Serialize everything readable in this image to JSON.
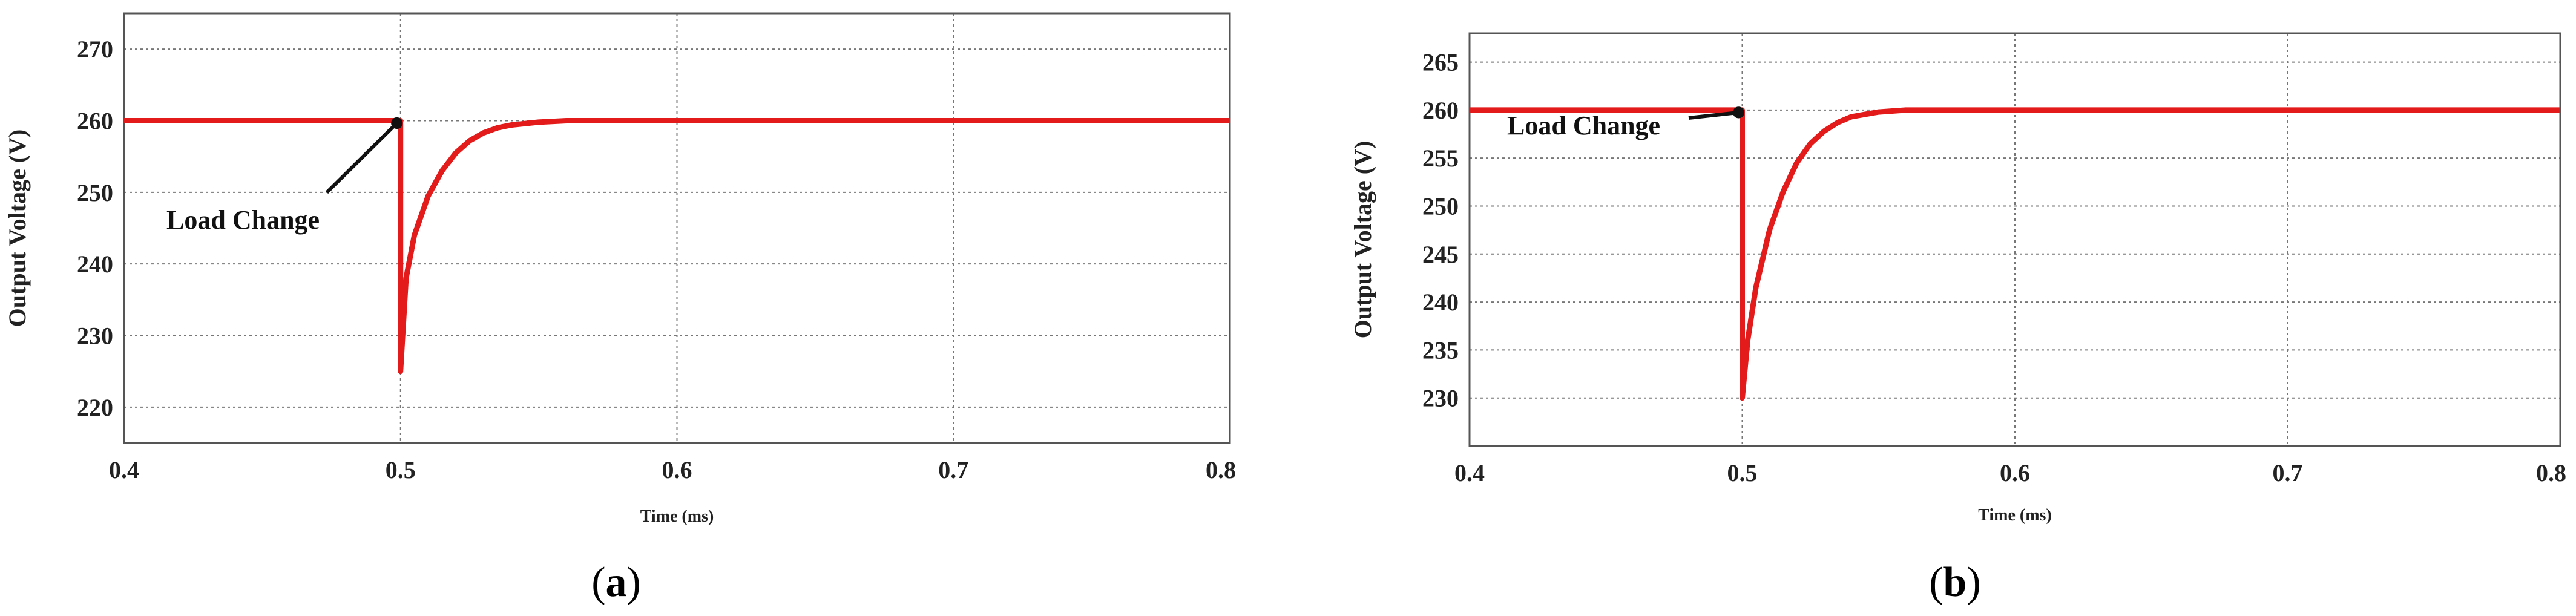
{
  "chart_data": [
    {
      "panel": "a",
      "type": "line",
      "xlabel": "Time (ms)",
      "ylabel": "Output Voltage (V)",
      "xlim": [
        0.4,
        0.8
      ],
      "ylim": [
        215,
        275
      ],
      "xticks": [
        "0.4",
        "0.5",
        "0.6",
        "0.7",
        "0.8"
      ],
      "yticks": [
        "220",
        "230",
        "240",
        "250",
        "260",
        "270"
      ],
      "grid": true,
      "annotation": "Load Change",
      "line_color": "#e31b1b",
      "series": [
        {
          "x": [
            0.4,
            0.5,
            0.5,
            0.502,
            0.505,
            0.51,
            0.515,
            0.52,
            0.525,
            0.53,
            0.535,
            0.54,
            0.55,
            0.56,
            0.8
          ],
          "y": [
            260,
            260,
            225,
            238,
            244,
            249.5,
            253,
            255.5,
            257.2,
            258.3,
            259,
            259.4,
            259.8,
            260,
            260
          ]
        }
      ]
    },
    {
      "panel": "b",
      "type": "line",
      "xlabel": "Time (ms)",
      "ylabel": "Output Voltage (V)",
      "xlim": [
        0.4,
        0.8
      ],
      "ylim": [
        225,
        268
      ],
      "xticks": [
        "0.4",
        "0.5",
        "0.6",
        "0.7",
        "0.8"
      ],
      "yticks": [
        "230",
        "235",
        "240",
        "245",
        "250",
        "255",
        "260",
        "265"
      ],
      "grid": true,
      "annotation": "Load Change",
      "line_color": "#e31b1b",
      "series": [
        {
          "x": [
            0.4,
            0.5,
            0.5,
            0.502,
            0.505,
            0.51,
            0.515,
            0.52,
            0.525,
            0.53,
            0.535,
            0.54,
            0.55,
            0.56,
            0.8
          ],
          "y": [
            260,
            260,
            230,
            236,
            241.5,
            247.5,
            251.5,
            254.5,
            256.5,
            257.8,
            258.7,
            259.3,
            259.8,
            260,
            260
          ]
        }
      ]
    }
  ],
  "captions": {
    "a": "a",
    "b": "b"
  }
}
